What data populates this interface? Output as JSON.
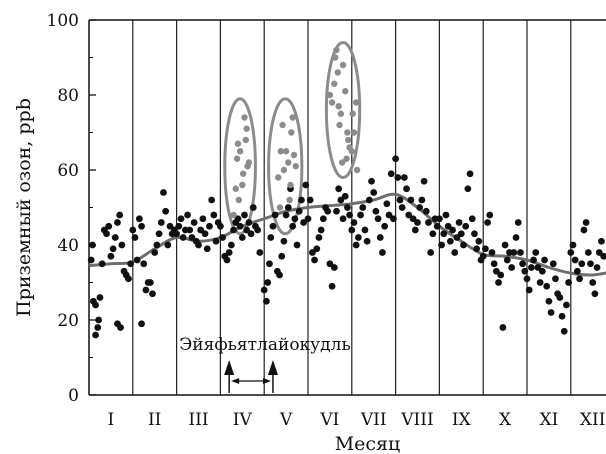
{
  "chart_data": {
    "type": "scatter",
    "xlabel": "Месяц",
    "ylabel": "Приземный озон, ppb",
    "ylim": [
      0,
      100
    ],
    "yticks": [
      0,
      20,
      40,
      60,
      80,
      100
    ],
    "xlim": [
      0,
      12
    ],
    "month_labels": [
      "I",
      "II",
      "III",
      "IV",
      "V",
      "VI",
      "VII",
      "VIII",
      "IX",
      "X",
      "XI",
      "XII"
    ],
    "annotation": {
      "text": "Эйяфьятлайокудль",
      "arrow_start_month": 3.2,
      "arrow_end_month": 4.2
    },
    "colors": {
      "points": "#111111",
      "highlight_points": "#8c8c8c",
      "smooth_line": "#6e6e6e",
      "ellipse": "#8c8c8c",
      "gridlines": "#222222"
    },
    "smooth_curve": {
      "x": [
        0,
        0.5,
        1,
        1.5,
        2,
        2.5,
        3,
        3.5,
        4,
        4.5,
        5,
        5.5,
        6,
        6.5,
        7,
        7.5,
        8,
        8.5,
        9,
        9.5,
        10,
        10.5,
        11,
        11.5,
        12
      ],
      "y": [
        34.5,
        35,
        35.5,
        39,
        42,
        41,
        42,
        45,
        47,
        49,
        50,
        50.5,
        51,
        52,
        53.5,
        50,
        45,
        41,
        37.5,
        37,
        36,
        34,
        32.5,
        32,
        33
      ]
    },
    "highlight_ellipses": [
      {
        "month_center": 3.45,
        "y_center": 61,
        "month_half_width": 0.35,
        "y_half_height": 18
      },
      {
        "month_center": 4.48,
        "y_center": 61,
        "month_half_width": 0.38,
        "y_half_height": 18
      },
      {
        "month_center": 5.8,
        "y_center": 76,
        "month_half_width": 0.38,
        "y_half_height": 18
      }
    ],
    "series": [
      {
        "name": "",
        "style": "black",
        "points": [
          [
            0.05,
            36
          ],
          [
            0.08,
            40
          ],
          [
            0.1,
            25
          ],
          [
            0.15,
            24
          ],
          [
            0.2,
            18
          ],
          [
            0.22,
            20
          ],
          [
            0.25,
            26
          ],
          [
            0.3,
            35
          ],
          [
            0.35,
            44
          ],
          [
            0.4,
            43
          ],
          [
            0.45,
            45
          ],
          [
            0.5,
            37
          ],
          [
            0.55,
            39
          ],
          [
            0.6,
            42
          ],
          [
            0.65,
            46
          ],
          [
            0.7,
            48
          ],
          [
            0.75,
            40
          ],
          [
            0.8,
            33
          ],
          [
            0.85,
            32
          ],
          [
            0.9,
            31
          ],
          [
            0.95,
            35
          ],
          [
            0.15,
            16
          ],
          [
            0.65,
            19
          ],
          [
            0.72,
            18
          ],
          [
            1.0,
            44
          ],
          [
            1.05,
            42
          ],
          [
            1.1,
            36
          ],
          [
            1.15,
            47
          ],
          [
            1.2,
            45
          ],
          [
            1.25,
            35
          ],
          [
            1.3,
            28
          ],
          [
            1.35,
            30
          ],
          [
            1.4,
            30
          ],
          [
            1.45,
            27
          ],
          [
            1.5,
            38
          ],
          [
            1.55,
            40
          ],
          [
            1.6,
            43
          ],
          [
            1.65,
            46
          ],
          [
            1.7,
            54
          ],
          [
            1.75,
            49
          ],
          [
            1.8,
            40
          ],
          [
            1.85,
            45
          ],
          [
            1.9,
            43
          ],
          [
            1.95,
            44
          ],
          [
            1.2,
            19
          ],
          [
            2.0,
            43
          ],
          [
            2.05,
            45
          ],
          [
            2.1,
            47
          ],
          [
            2.15,
            42
          ],
          [
            2.2,
            44
          ],
          [
            2.25,
            48
          ],
          [
            2.3,
            44
          ],
          [
            2.35,
            42
          ],
          [
            2.4,
            46
          ],
          [
            2.45,
            41
          ],
          [
            2.5,
            40
          ],
          [
            2.55,
            44
          ],
          [
            2.6,
            47
          ],
          [
            2.65,
            43
          ],
          [
            2.7,
            39
          ],
          [
            2.75,
            45
          ],
          [
            2.8,
            52
          ],
          [
            2.85,
            48
          ],
          [
            2.9,
            41
          ],
          [
            2.95,
            46
          ],
          [
            3.0,
            45
          ],
          [
            3.05,
            42
          ],
          [
            3.1,
            37
          ],
          [
            3.15,
            36
          ],
          [
            3.2,
            38
          ],
          [
            3.25,
            40
          ],
          [
            3.3,
            44
          ],
          [
            3.35,
            46
          ],
          [
            3.4,
            47
          ],
          [
            3.45,
            45
          ],
          [
            3.5,
            42
          ],
          [
            3.55,
            48
          ],
          [
            3.6,
            44
          ],
          [
            3.65,
            46
          ],
          [
            3.7,
            43
          ],
          [
            3.75,
            50
          ],
          [
            3.8,
            45
          ],
          [
            3.85,
            44
          ],
          [
            3.9,
            38
          ],
          [
            4.0,
            28
          ],
          [
            4.05,
            25
          ],
          [
            4.08,
            30
          ],
          [
            4.12,
            35
          ],
          [
            4.15,
            42
          ],
          [
            4.2,
            45
          ],
          [
            4.25,
            48
          ],
          [
            4.3,
            33
          ],
          [
            4.35,
            32
          ],
          [
            4.4,
            37
          ],
          [
            4.45,
            41
          ],
          [
            4.5,
            48
          ],
          [
            4.55,
            50
          ],
          [
            4.6,
            55
          ],
          [
            4.65,
            45
          ],
          [
            4.7,
            47
          ],
          [
            4.75,
            40
          ],
          [
            4.8,
            49
          ],
          [
            4.85,
            52
          ],
          [
            4.9,
            46
          ],
          [
            4.95,
            56
          ],
          [
            5.0,
            47
          ],
          [
            5.05,
            52
          ],
          [
            5.1,
            38
          ],
          [
            5.15,
            36
          ],
          [
            5.2,
            39
          ],
          [
            5.25,
            42
          ],
          [
            5.3,
            44
          ],
          [
            5.35,
            47
          ],
          [
            5.4,
            50
          ],
          [
            5.45,
            49
          ],
          [
            5.5,
            35
          ],
          [
            5.55,
            29
          ],
          [
            5.6,
            34
          ],
          [
            5.65,
            49
          ],
          [
            5.7,
            55
          ],
          [
            5.75,
            52
          ],
          [
            5.8,
            47
          ],
          [
            5.85,
            53
          ],
          [
            5.9,
            50
          ],
          [
            5.95,
            48
          ],
          [
            6.0,
            44
          ],
          [
            6.05,
            46
          ],
          [
            6.1,
            40
          ],
          [
            6.15,
            42
          ],
          [
            6.2,
            48
          ],
          [
            6.25,
            50
          ],
          [
            6.3,
            44
          ],
          [
            6.35,
            41
          ],
          [
            6.4,
            52
          ],
          [
            6.45,
            57
          ],
          [
            6.5,
            54
          ],
          [
            6.55,
            49
          ],
          [
            6.6,
            47
          ],
          [
            6.65,
            42
          ],
          [
            6.7,
            38
          ],
          [
            6.75,
            45
          ],
          [
            6.8,
            51
          ],
          [
            6.85,
            48
          ],
          [
            6.9,
            59
          ],
          [
            6.95,
            47
          ],
          [
            7.0,
            63
          ],
          [
            7.05,
            58
          ],
          [
            7.1,
            52
          ],
          [
            7.15,
            50
          ],
          [
            7.2,
            58
          ],
          [
            7.25,
            55
          ],
          [
            7.3,
            48
          ],
          [
            7.35,
            52
          ],
          [
            7.4,
            47
          ],
          [
            7.45,
            44
          ],
          [
            7.5,
            46
          ],
          [
            7.55,
            50
          ],
          [
            7.6,
            52
          ],
          [
            7.65,
            57
          ],
          [
            7.7,
            49
          ],
          [
            7.75,
            46
          ],
          [
            7.8,
            38
          ],
          [
            7.85,
            43
          ],
          [
            7.9,
            47
          ],
          [
            7.95,
            45
          ],
          [
            8.0,
            47
          ],
          [
            8.05,
            40
          ],
          [
            8.1,
            43
          ],
          [
            8.15,
            48
          ],
          [
            8.2,
            45
          ],
          [
            8.25,
            41
          ],
          [
            8.3,
            44
          ],
          [
            8.35,
            38
          ],
          [
            8.4,
            42
          ],
          [
            8.45,
            46
          ],
          [
            8.5,
            43
          ],
          [
            8.55,
            40
          ],
          [
            8.6,
            45
          ],
          [
            8.65,
            55
          ],
          [
            8.7,
            59
          ],
          [
            8.75,
            47
          ],
          [
            8.8,
            43
          ],
          [
            8.85,
            39
          ],
          [
            8.9,
            41
          ],
          [
            8.95,
            36
          ],
          [
            9.0,
            37
          ],
          [
            9.05,
            39
          ],
          [
            9.1,
            46
          ],
          [
            9.15,
            48
          ],
          [
            9.2,
            38
          ],
          [
            9.25,
            35
          ],
          [
            9.3,
            33
          ],
          [
            9.35,
            30
          ],
          [
            9.4,
            32
          ],
          [
            9.45,
            18
          ],
          [
            9.5,
            40
          ],
          [
            9.55,
            36
          ],
          [
            9.6,
            38
          ],
          [
            9.65,
            34
          ],
          [
            9.7,
            38
          ],
          [
            9.75,
            42
          ],
          [
            9.8,
            46
          ],
          [
            9.85,
            38
          ],
          [
            9.9,
            35
          ],
          [
            9.95,
            33
          ],
          [
            10.0,
            31
          ],
          [
            10.05,
            28
          ],
          [
            10.1,
            34
          ],
          [
            10.15,
            36
          ],
          [
            10.2,
            38
          ],
          [
            10.25,
            34
          ],
          [
            10.3,
            30
          ],
          [
            10.35,
            33
          ],
          [
            10.4,
            36
          ],
          [
            10.45,
            29
          ],
          [
            10.5,
            25
          ],
          [
            10.55,
            22
          ],
          [
            10.6,
            35
          ],
          [
            10.65,
            31
          ],
          [
            10.7,
            27
          ],
          [
            10.75,
            26
          ],
          [
            10.8,
            21
          ],
          [
            10.85,
            17
          ],
          [
            10.9,
            24
          ],
          [
            10.95,
            30
          ],
          [
            11.0,
            38
          ],
          [
            11.05,
            40
          ],
          [
            11.1,
            36
          ],
          [
            11.15,
            33
          ],
          [
            11.2,
            31
          ],
          [
            11.25,
            35
          ],
          [
            11.3,
            44
          ],
          [
            11.35,
            46
          ],
          [
            11.4,
            38
          ],
          [
            11.45,
            35
          ],
          [
            11.5,
            30
          ],
          [
            11.55,
            27
          ],
          [
            11.6,
            34
          ],
          [
            11.65,
            38
          ],
          [
            11.7,
            41
          ],
          [
            11.75,
            37
          ],
          [
            11.8,
            34
          ],
          [
            11.85,
            40
          ],
          [
            11.9,
            42
          ],
          [
            11.95,
            41
          ]
        ]
      },
      {
        "name": "",
        "style": "gray",
        "points": [
          [
            3.3,
            48
          ],
          [
            3.35,
            55
          ],
          [
            3.38,
            63
          ],
          [
            3.4,
            67
          ],
          [
            3.45,
            65
          ],
          [
            3.5,
            56
          ],
          [
            3.55,
            74
          ],
          [
            3.6,
            71
          ],
          [
            3.62,
            61
          ],
          [
            3.65,
            62
          ],
          [
            3.58,
            68
          ],
          [
            3.42,
            52
          ],
          [
            3.52,
            59
          ],
          [
            4.32,
            58
          ],
          [
            4.38,
            65
          ],
          [
            4.42,
            72
          ],
          [
            4.45,
            60
          ],
          [
            4.5,
            65
          ],
          [
            4.55,
            62
          ],
          [
            4.6,
            56
          ],
          [
            4.62,
            70
          ],
          [
            4.65,
            74
          ],
          [
            4.68,
            64
          ],
          [
            4.72,
            61
          ],
          [
            4.58,
            52
          ],
          [
            4.36,
            50
          ],
          [
            5.5,
            80
          ],
          [
            5.55,
            78
          ],
          [
            5.6,
            83
          ],
          [
            5.62,
            90
          ],
          [
            5.65,
            92
          ],
          [
            5.68,
            86
          ],
          [
            5.7,
            77
          ],
          [
            5.72,
            72
          ],
          [
            5.75,
            75
          ],
          [
            5.8,
            88
          ],
          [
            5.85,
            81
          ],
          [
            5.9,
            70
          ],
          [
            5.92,
            68
          ],
          [
            5.95,
            66
          ],
          [
            6.0,
            65
          ],
          [
            6.05,
            70
          ],
          [
            6.1,
            78
          ],
          [
            6.12,
            60
          ],
          [
            5.78,
            62
          ],
          [
            5.88,
            63
          ],
          [
            6.02,
            75
          ]
        ]
      }
    ]
  }
}
